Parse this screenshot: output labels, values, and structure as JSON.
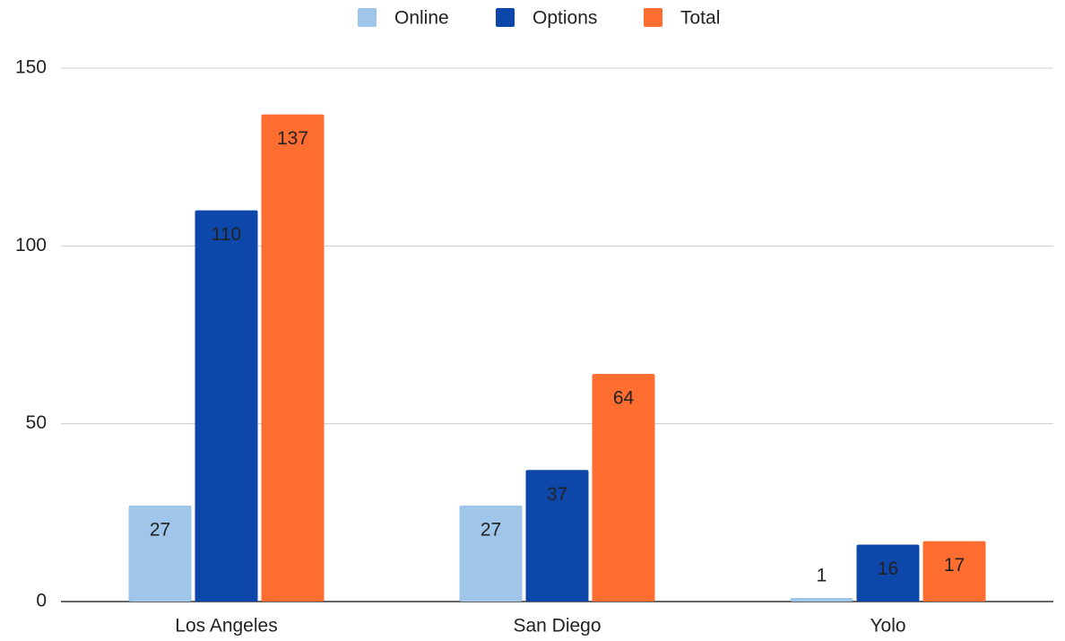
{
  "chart_data": {
    "type": "bar",
    "categories": [
      "Los Angeles",
      "San Diego",
      "Yolo"
    ],
    "series": [
      {
        "name": "Online",
        "color": "#9fc5e8",
        "values": [
          27,
          27,
          1
        ]
      },
      {
        "name": "Options",
        "color": "#0d47a9",
        "values": [
          110,
          37,
          16
        ]
      },
      {
        "name": "Total",
        "color": "#ff6d31",
        "values": [
          137,
          64,
          17
        ]
      }
    ],
    "ylim": [
      0,
      150
    ],
    "yticks": [
      0,
      50,
      100,
      150
    ],
    "grid": true,
    "legend": "top"
  }
}
